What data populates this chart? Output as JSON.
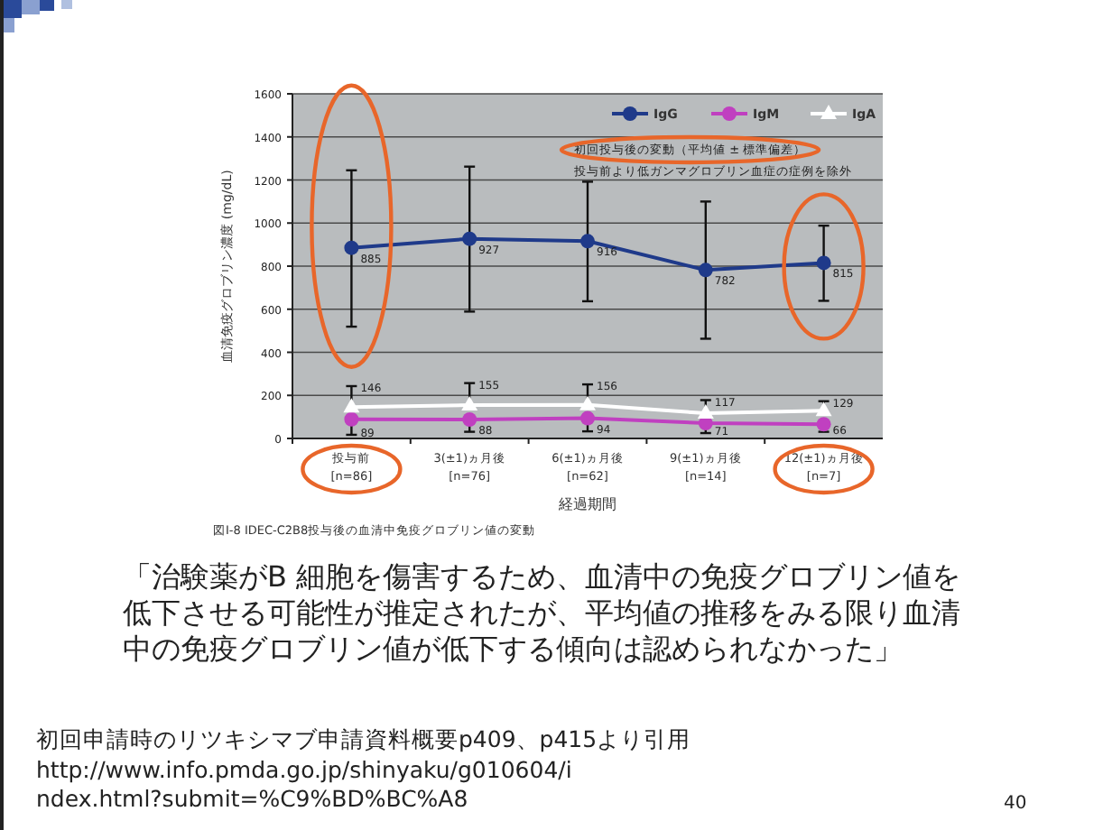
{
  "chart_data": {
    "type": "line",
    "categories": [
      "投与前\n[n=86]",
      "3(±1)ヵ月後\n[n=76]",
      "6(±1)ヵ月後\n[n=62]",
      "9(±1)ヵ月後\n[n=14]",
      "12(±1)ヵ月後\n[n=7]"
    ],
    "series": [
      {
        "name": "IgG",
        "color": "#1f3a8a",
        "marker": "circle",
        "values": [
          885,
          927,
          916,
          782,
          815
        ],
        "errors": [
          [
            519,
            1245
          ],
          [
            589,
            1262
          ],
          [
            637,
            1192
          ],
          [
            463,
            1100
          ],
          [
            639,
            988
          ]
        ]
      },
      {
        "name": "IgM",
        "color": "#c040c0",
        "marker": "circle",
        "values": [
          89,
          88,
          94,
          71,
          66
        ],
        "errors": [
          [
            17,
            89
          ],
          [
            31,
            88
          ],
          [
            33,
            94
          ],
          [
            25,
            71
          ],
          [
            31,
            66
          ]
        ]
      },
      {
        "name": "IgA",
        "color": "#ffffff",
        "marker": "triangle",
        "values": [
          146,
          155,
          156,
          117,
          129
        ],
        "errors": [
          [
            146,
            243
          ],
          [
            155,
            257
          ],
          [
            156,
            251
          ],
          [
            117,
            178
          ],
          [
            129,
            173
          ]
        ]
      }
    ],
    "ylim": [
      0,
      1600
    ],
    "yticks": [
      0,
      200,
      400,
      600,
      800,
      1000,
      1200,
      1400,
      1600
    ],
    "ylabel": "血清免疫グロブリン濃度 (mg/dL)",
    "xlabel": "経過期間",
    "grid": "y",
    "legend": "top right",
    "data_labels": true,
    "annotations": [
      "初回投与後の変動（平均値 ± 標準偏差）",
      "投与前より低ガンマグロブリン血症の症例を除外",
      "図I-8  IDEC-C2B8投与後の血清中免疫グロブリン値の変動",
      "「治験薬がB 細胞を傷害するため、血清中の免疫グロブリン値を低下させる可能性が推定されたが、平均値の推移をみる限り血清中の免疫グロブリン値が低下する傾向は認められなかった」",
      "初回申請時のリツキシマブ申請資料概要p409、p415より引用",
      "http://www.info.pmda.go.jp/shinyaku/g010604/index.html?submit=%C9%BD%BC%A8",
      "40"
    ]
  }
}
